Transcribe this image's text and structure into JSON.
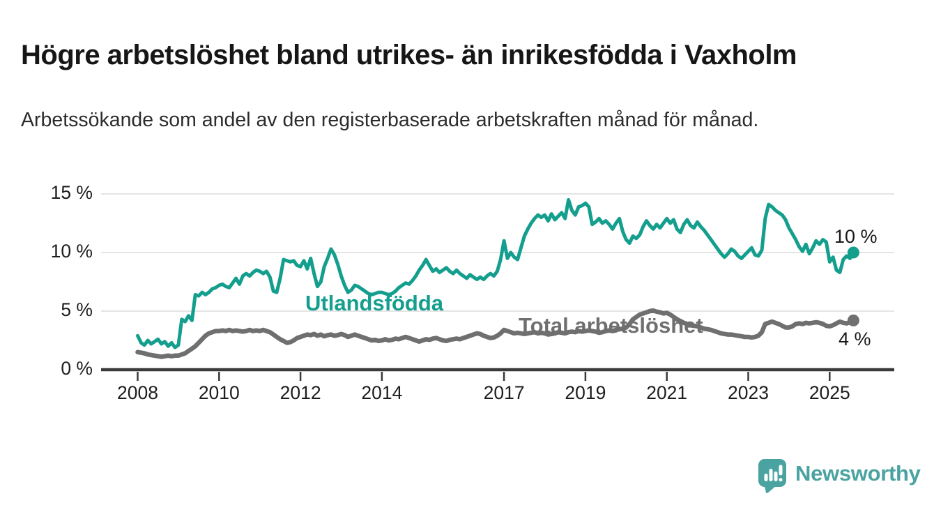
{
  "header": {
    "title": "Högre arbetslöshet bland utrikes- än inrikesfödda i Vaxholm",
    "subtitle": "Arbetssökande som andel av den registerbaserade arbetskraften månad för månad."
  },
  "chart_data": {
    "type": "line",
    "unit": "%",
    "frequency": "monthly",
    "start": "2008-01",
    "end": "2025-08",
    "grid": true,
    "legend": "inline-labels",
    "x_axis": {
      "ticks": [
        {
          "year": 2008,
          "label": "2008"
        },
        {
          "year": 2010,
          "label": "2010"
        },
        {
          "year": 2012,
          "label": "2012"
        },
        {
          "year": 2014,
          "label": "2014"
        },
        {
          "year": 2017,
          "label": "2017"
        },
        {
          "year": 2019,
          "label": "2019"
        },
        {
          "year": 2021,
          "label": "2021"
        },
        {
          "year": 2023,
          "label": "2023"
        },
        {
          "year": 2025,
          "label": "2025"
        }
      ],
      "range_years": [
        2007.1,
        2026.6
      ]
    },
    "y_axis": {
      "ticks": [
        {
          "value": 0,
          "label": "0 %"
        },
        {
          "value": 5,
          "label": "5 %"
        },
        {
          "value": 10,
          "label": "10 %"
        },
        {
          "value": 15,
          "label": "15 %"
        }
      ],
      "range": [
        0,
        16.8
      ]
    },
    "series": [
      {
        "name": "Utlandsfödda",
        "color": "#149e8d",
        "end_label": "10 %",
        "end_value": 10.0,
        "values": [
          2.9,
          2.3,
          2.1,
          2.5,
          2.2,
          2.4,
          2.6,
          2.2,
          2.4,
          2.0,
          2.3,
          1.9,
          2.1,
          4.3,
          4.1,
          4.6,
          4.2,
          6.4,
          6.3,
          6.6,
          6.4,
          6.6,
          6.9,
          7.0,
          7.2,
          7.3,
          7.1,
          7.0,
          7.4,
          7.8,
          7.3,
          8.0,
          8.2,
          8.0,
          8.3,
          8.5,
          8.4,
          8.2,
          8.4,
          7.9,
          6.7,
          6.6,
          7.8,
          9.4,
          9.3,
          9.2,
          9.3,
          8.9,
          8.8,
          9.3,
          8.6,
          9.5,
          8.2,
          7.1,
          7.5,
          8.8,
          9.5,
          10.3,
          9.8,
          9.0,
          8.0,
          7.2,
          6.6,
          6.8,
          7.2,
          7.1,
          6.9,
          6.7,
          6.5,
          6.4,
          6.5,
          6.6,
          6.6,
          6.5,
          6.4,
          6.5,
          6.7,
          7.0,
          7.2,
          7.4,
          7.3,
          7.6,
          8.0,
          8.5,
          8.9,
          9.4,
          8.9,
          8.4,
          8.6,
          8.3,
          8.5,
          8.7,
          8.4,
          8.2,
          8.5,
          8.2,
          8.0,
          7.8,
          8.1,
          7.9,
          7.7,
          7.9,
          7.7,
          8.0,
          8.2,
          8.0,
          8.4,
          9.4,
          11.0,
          9.5,
          10.0,
          9.6,
          9.4,
          10.4,
          11.4,
          12.0,
          12.5,
          12.9,
          13.2,
          13.0,
          13.2,
          12.7,
          13.3,
          12.8,
          13.1,
          13.4,
          12.9,
          14.5,
          13.6,
          13.2,
          13.9,
          14.0,
          14.2,
          13.9,
          12.4,
          12.6,
          12.9,
          12.5,
          12.7,
          12.4,
          12.0,
          12.5,
          12.9,
          11.8,
          11.1,
          10.8,
          11.4,
          11.2,
          11.5,
          12.2,
          12.7,
          12.3,
          12.0,
          12.4,
          12.1,
          12.5,
          12.9,
          12.5,
          12.8,
          12.0,
          11.7,
          12.4,
          12.8,
          12.3,
          12.1,
          12.6,
          12.2,
          11.9,
          11.5,
          11.1,
          10.7,
          10.3,
          9.9,
          9.6,
          9.9,
          10.3,
          10.1,
          9.7,
          9.5,
          9.8,
          10.1,
          10.4,
          9.8,
          9.7,
          10.2,
          12.9,
          14.1,
          13.9,
          13.6,
          13.4,
          13.2,
          12.8,
          12.1,
          11.6,
          11.1,
          10.5,
          10.1,
          10.7,
          9.9,
          10.4,
          11.0,
          10.7,
          11.1,
          10.9,
          9.2,
          9.6,
          8.5,
          8.3,
          9.4,
          9.7,
          9.5,
          10.0
        ]
      },
      {
        "name": "Total arbetslöshet",
        "color": "#6f6f6f",
        "end_label": "4 %",
        "end_value": 4.2,
        "values": [
          1.5,
          1.45,
          1.4,
          1.3,
          1.25,
          1.2,
          1.15,
          1.1,
          1.15,
          1.2,
          1.15,
          1.2,
          1.2,
          1.3,
          1.4,
          1.6,
          1.8,
          2.0,
          2.3,
          2.6,
          2.9,
          3.1,
          3.2,
          3.3,
          3.3,
          3.35,
          3.3,
          3.4,
          3.3,
          3.35,
          3.3,
          3.25,
          3.3,
          3.4,
          3.3,
          3.35,
          3.3,
          3.4,
          3.3,
          3.2,
          3.0,
          2.8,
          2.6,
          2.45,
          2.3,
          2.35,
          2.5,
          2.7,
          2.8,
          2.9,
          3.0,
          2.95,
          3.05,
          2.9,
          3.0,
          2.85,
          2.95,
          3.0,
          2.9,
          2.95,
          3.05,
          2.95,
          2.8,
          2.9,
          3.0,
          2.9,
          2.8,
          2.7,
          2.6,
          2.5,
          2.55,
          2.45,
          2.5,
          2.6,
          2.5,
          2.55,
          2.65,
          2.6,
          2.7,
          2.8,
          2.7,
          2.6,
          2.5,
          2.4,
          2.5,
          2.6,
          2.55,
          2.65,
          2.7,
          2.6,
          2.5,
          2.45,
          2.55,
          2.6,
          2.65,
          2.6,
          2.7,
          2.8,
          2.9,
          3.0,
          3.1,
          3.05,
          2.9,
          2.8,
          2.7,
          2.75,
          2.9,
          3.1,
          3.4,
          3.3,
          3.2,
          3.1,
          3.15,
          3.1,
          3.05,
          3.1,
          3.15,
          3.2,
          3.1,
          3.15,
          3.1,
          3.0,
          3.05,
          3.1,
          3.2,
          3.15,
          3.1,
          3.2,
          3.25,
          3.2,
          3.3,
          3.25,
          3.3,
          3.35,
          3.3,
          3.25,
          3.15,
          3.2,
          3.3,
          3.35,
          3.3,
          3.4,
          3.45,
          3.5,
          3.6,
          3.9,
          4.3,
          4.5,
          4.7,
          4.8,
          4.9,
          5.0,
          5.05,
          4.95,
          4.9,
          4.8,
          4.85,
          4.7,
          4.5,
          4.3,
          4.15,
          4.0,
          3.9,
          3.8,
          3.75,
          3.7,
          3.6,
          3.5,
          3.45,
          3.4,
          3.3,
          3.2,
          3.1,
          3.05,
          3.0,
          3.0,
          2.95,
          2.9,
          2.85,
          2.8,
          2.8,
          2.75,
          2.8,
          2.9,
          3.2,
          3.9,
          4.0,
          4.1,
          4.0,
          3.9,
          3.75,
          3.6,
          3.6,
          3.7,
          3.9,
          3.95,
          3.9,
          4.0,
          3.95,
          4.0,
          4.05,
          4.0,
          3.9,
          3.75,
          3.7,
          3.8,
          3.95,
          4.1,
          4.0,
          3.95,
          4.05,
          4.2
        ]
      }
    ],
    "style": {
      "grid_color": "#dcdcdc",
      "axis_color": "#3a3a3a",
      "text_color": "#1d1d1d"
    }
  },
  "branding": {
    "logo_text": "Newsworthy",
    "logo_color": "#4aa3a0",
    "icon": "chart-speech-bubble-icon"
  }
}
